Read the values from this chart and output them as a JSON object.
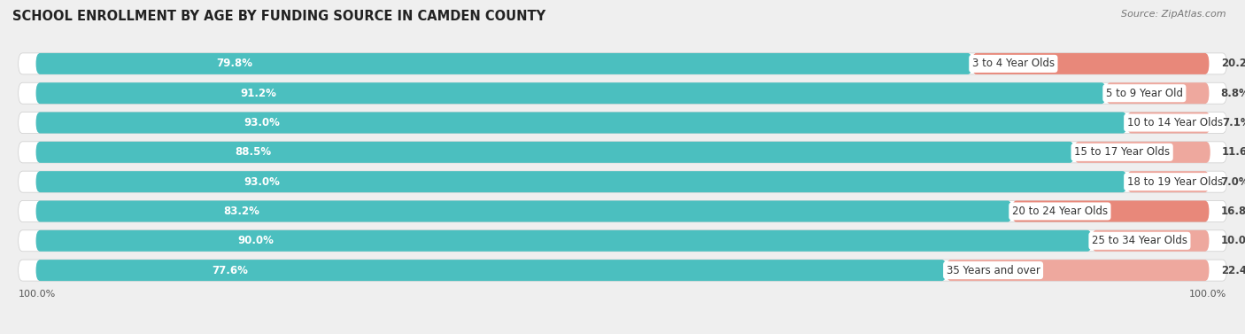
{
  "title": "SCHOOL ENROLLMENT BY AGE BY FUNDING SOURCE IN CAMDEN COUNTY",
  "source": "Source: ZipAtlas.com",
  "categories": [
    "3 to 4 Year Olds",
    "5 to 9 Year Old",
    "10 to 14 Year Olds",
    "15 to 17 Year Olds",
    "18 to 19 Year Olds",
    "20 to 24 Year Olds",
    "25 to 34 Year Olds",
    "35 Years and over"
  ],
  "public_pct": [
    79.8,
    91.2,
    93.0,
    88.5,
    93.0,
    83.2,
    90.0,
    77.6
  ],
  "private_pct": [
    20.2,
    8.8,
    7.1,
    11.6,
    7.0,
    16.8,
    10.0,
    22.4
  ],
  "public_color": "#4bbfbf",
  "private_color": "#e8887a",
  "private_color_light": "#eea89e",
  "bg_color": "#efefef",
  "bar_bg_color": "#ffffff",
  "title_fontsize": 10.5,
  "pct_label_fontsize": 8.5,
  "cat_label_fontsize": 8.5,
  "axis_label_fontsize": 8,
  "legend_fontsize": 9,
  "source_fontsize": 8
}
